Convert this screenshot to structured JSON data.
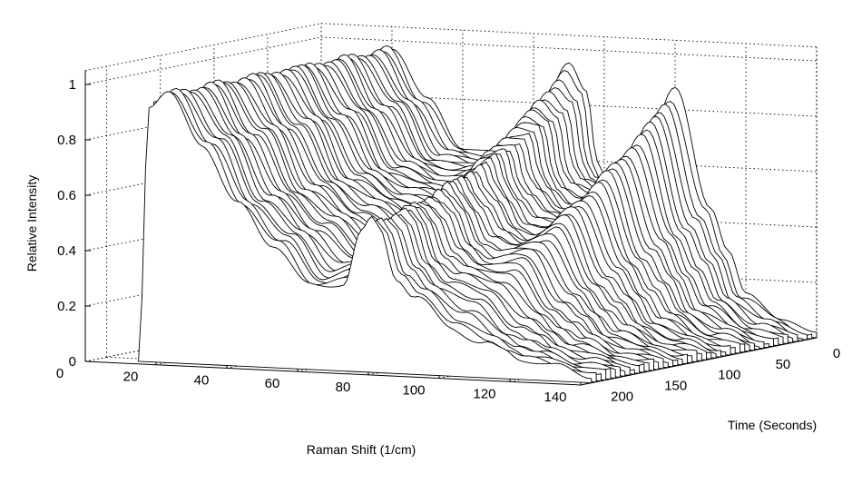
{
  "chart_data": {
    "type": "waterfall",
    "style": "3d-line-waterfall",
    "xlabel": "Raman Shift (1/cm)",
    "ylabel": "Time (Seconds)",
    "zlabel": "Relative Intensity",
    "x_ticks": [
      "0",
      "20",
      "40",
      "60",
      "80",
      "100",
      "120",
      "140"
    ],
    "y_ticks": [
      "0",
      "50",
      "100",
      "150",
      "200"
    ],
    "z_ticks": [
      "0",
      "0.2",
      "0.4",
      "0.6",
      "0.8",
      "1"
    ],
    "xlim": [
      0,
      140
    ],
    "ylim": [
      0,
      220
    ],
    "zlim": [
      0,
      1
    ],
    "grid": true,
    "series_count": 48,
    "line_color": "#000000",
    "background": "#ffffff",
    "approximate_profile": {
      "x": [
        12,
        15,
        20,
        30,
        40,
        50,
        60,
        70,
        75,
        78,
        80,
        85,
        90,
        100,
        110,
        115,
        120,
        130,
        140
      ],
      "intensity_late_time": [
        0.0,
        0.93,
        0.97,
        0.8,
        0.58,
        0.45,
        0.3,
        0.32,
        0.5,
        0.55,
        0.52,
        0.35,
        0.28,
        0.18,
        0.12,
        0.1,
        0.08,
        0.05,
        0.03
      ],
      "intensity_early_time": [
        0.0,
        0.93,
        0.97,
        0.8,
        0.62,
        0.62,
        0.7,
        0.95,
        0.85,
        0.6,
        0.55,
        0.55,
        0.58,
        0.88,
        0.45,
        0.3,
        0.15,
        0.06,
        0.02
      ]
    }
  }
}
